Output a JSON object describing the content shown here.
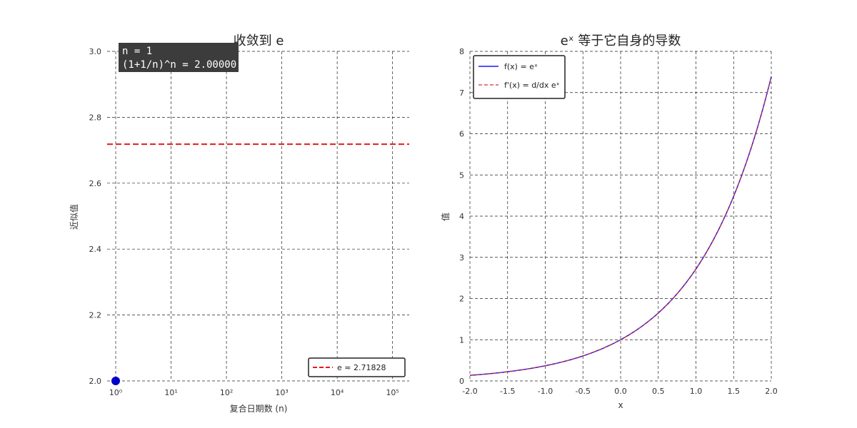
{
  "chart_data": [
    {
      "type": "scatter",
      "title": "收敛到 e",
      "xlabel": "复合日期数 (n)",
      "ylabel": "近似值",
      "xscale": "log",
      "xlim": [
        0.7,
        200000
      ],
      "ylim": [
        2.0,
        3.0
      ],
      "xticks": [
        "10⁰",
        "10¹",
        "10²",
        "10³",
        "10⁴",
        "10⁵"
      ],
      "yticks": [
        "2.0",
        "2.2",
        "2.4",
        "2.6",
        "2.8",
        "3.0"
      ],
      "grid": true,
      "points": [
        {
          "x": 1,
          "y": 2.0
        }
      ],
      "reference_line": {
        "y": 2.71828,
        "label": "e ≈ 2.71828",
        "color": "#e41a1c",
        "style": "dashed"
      },
      "annotation": {
        "line1": "n = 1",
        "line2": "(1+1/n)^n = 2.00000"
      },
      "point_color": "#0000cc",
      "legend_position": "lower-right"
    },
    {
      "type": "line",
      "title": "eˣ 等于它自身的导数",
      "xlabel": "x",
      "ylabel": "值",
      "xlim": [
        -2.0,
        2.0
      ],
      "ylim": [
        0,
        8
      ],
      "xticks": [
        "-2.0",
        "-1.5",
        "-1.0",
        "-0.5",
        "0.0",
        "0.5",
        "1.0",
        "1.5",
        "2.0"
      ],
      "yticks": [
        "0",
        "1",
        "2",
        "3",
        "4",
        "5",
        "6",
        "7",
        "8"
      ],
      "grid": true,
      "legend_position": "upper-left",
      "series": [
        {
          "name": "f(x) = eˣ",
          "function": "exp",
          "color": "#1a1aff",
          "style": "solid"
        },
        {
          "name": "f'(x) = d/dx eˣ",
          "function": "exp",
          "color": "#cc3333",
          "style": "dashed"
        }
      ]
    }
  ]
}
